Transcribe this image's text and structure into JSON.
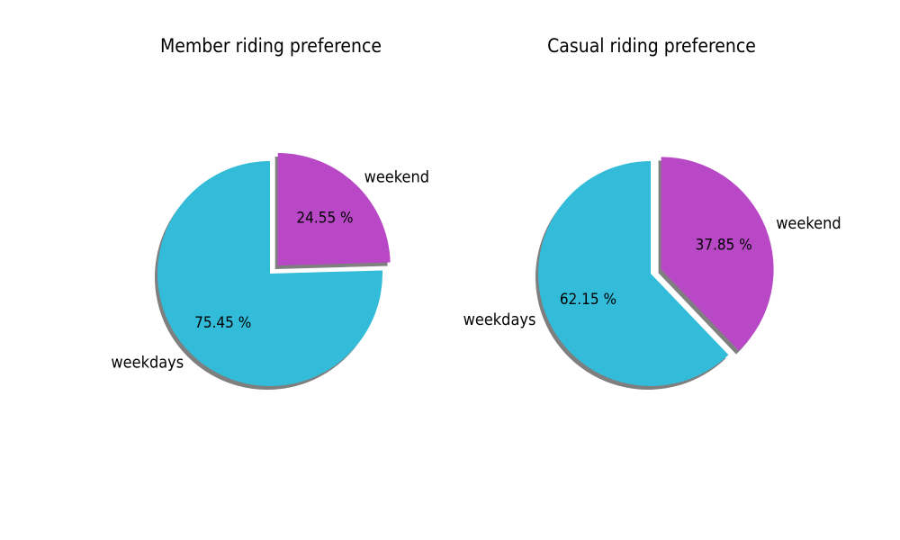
{
  "chart_data": [
    {
      "type": "pie",
      "title": "Member riding preference",
      "slices": [
        {
          "label": "weekend",
          "value": 24.55,
          "pct_label": "24.55 %",
          "color": "#b948c7",
          "explode": 0.1
        },
        {
          "label": "weekdays",
          "value": 75.45,
          "pct_label": "75.45 %",
          "color": "#33bcd9",
          "explode": 0
        }
      ],
      "start_angle_deg": 90,
      "direction": "clockwise",
      "shadow": true
    },
    {
      "type": "pie",
      "title": "Casual riding preference",
      "slices": [
        {
          "label": "weekend",
          "value": 37.85,
          "pct_label": "37.85 %",
          "color": "#b948c7",
          "explode": 0.1
        },
        {
          "label": "weekdays",
          "value": 62.15,
          "pct_label": "62.15 %",
          "color": "#33bcd9",
          "explode": 0
        }
      ],
      "start_angle_deg": 90,
      "direction": "clockwise",
      "shadow": true
    }
  ]
}
